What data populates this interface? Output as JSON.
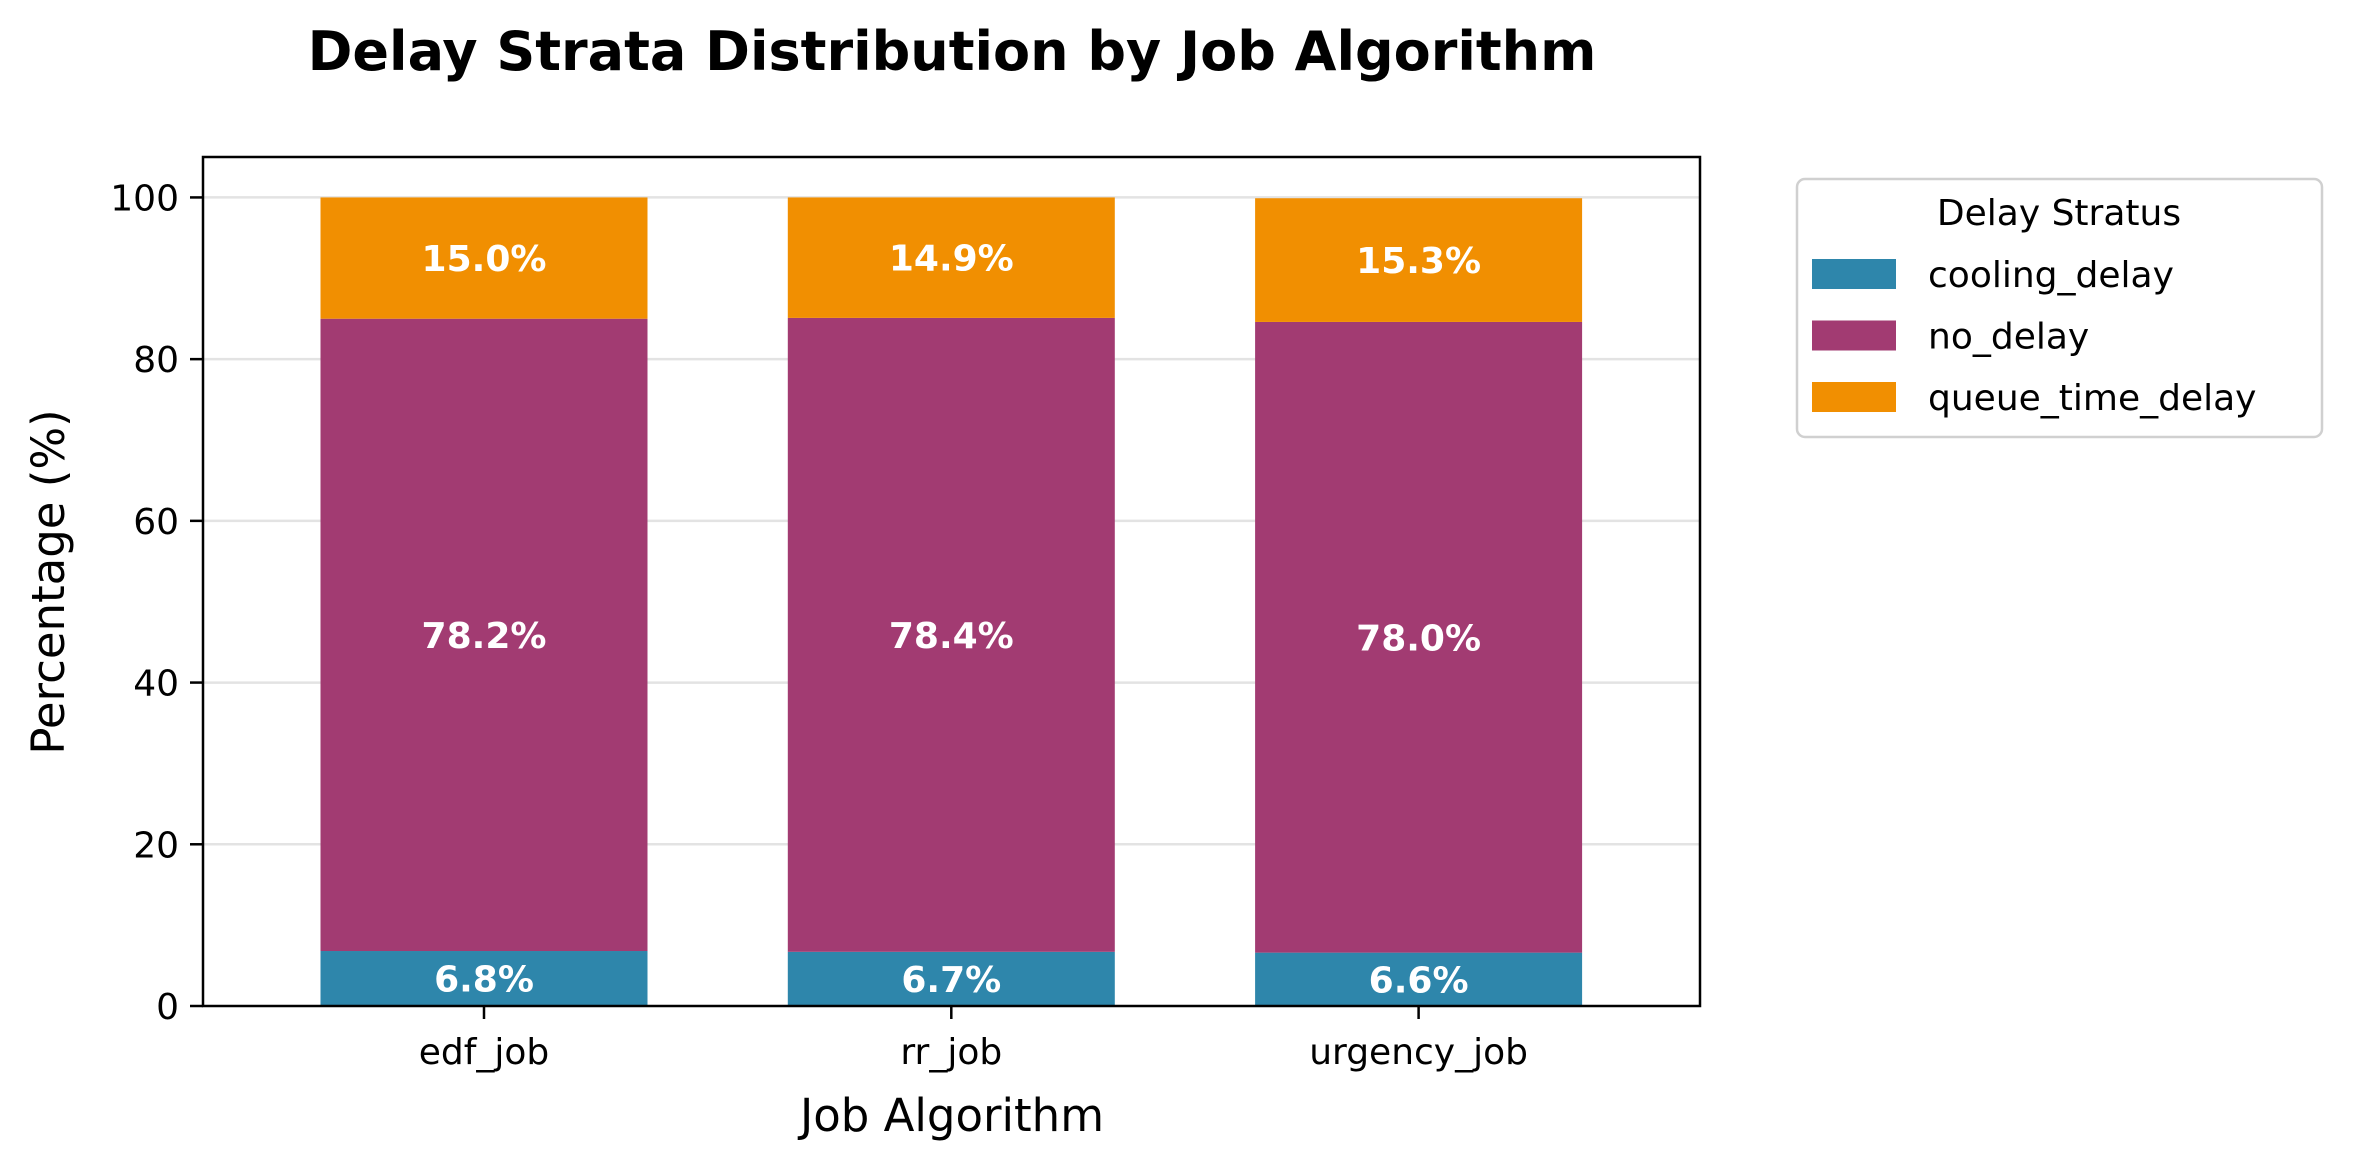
{
  "chart_data": {
    "type": "bar",
    "stacked": true,
    "title": "Delay Strata Distribution by Job Algorithm",
    "xlabel": "Job Algorithm",
    "ylabel": "Percentage (%)",
    "categories": [
      "edf_job",
      "rr_job",
      "urgency_job"
    ],
    "ylim": [
      0,
      105
    ],
    "yticks": [
      0,
      20,
      40,
      60,
      80,
      100
    ],
    "grid": "horizontal",
    "legend": {
      "title": "Delay Stratus",
      "placement": "outside upper-right"
    },
    "series": [
      {
        "name": "cooling_delay",
        "color": "#2e86ab",
        "values": [
          6.8,
          6.7,
          6.6
        ],
        "labels": [
          "6.8%",
          "6.7%",
          "6.6%"
        ]
      },
      {
        "name": "no_delay",
        "color": "#a23b72",
        "values": [
          78.2,
          78.4,
          78.0
        ],
        "labels": [
          "78.2%",
          "78.4%",
          "78.0%"
        ]
      },
      {
        "name": "queue_time_delay",
        "color": "#f18f01",
        "values": [
          15.0,
          14.9,
          15.3
        ],
        "labels": [
          "15.0%",
          "14.9%",
          "15.3%"
        ]
      }
    ]
  }
}
